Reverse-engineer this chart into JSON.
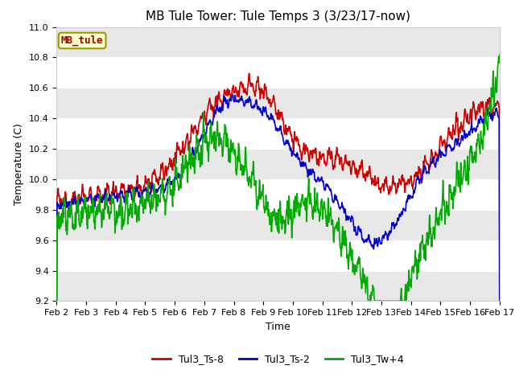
{
  "title": "MB Tule Tower: Tule Temps 3 (3/23/17-now)",
  "xlabel": "Time",
  "ylabel": "Temperature (C)",
  "ylim": [
    9.2,
    11.0
  ],
  "xlim": [
    0,
    15
  ],
  "xtick_labels": [
    "Feb 2",
    "Feb 3",
    "Feb 4",
    "Feb 5",
    "Feb 6",
    "Feb 7",
    "Feb 8",
    "Feb 9",
    "Feb 10",
    "Feb 11",
    "Feb 12",
    "Feb 13",
    "Feb 14",
    "Feb 15",
    "Feb 16",
    "Feb 17"
  ],
  "color_red": "#cc0000",
  "color_blue": "#0000cc",
  "color_green": "#00aa00",
  "legend_entries": [
    "Tul3_Ts-8",
    "Tul3_Ts-2",
    "Tul3_Tw+4"
  ],
  "watermark_text": "MB_tule",
  "watermark_bg": "#ffffcc",
  "watermark_border": "#999900",
  "fig_bg": "#ffffff",
  "plot_bg": "#ffffff",
  "grid_color": "#dddddd",
  "title_fontsize": 11,
  "axis_fontsize": 9,
  "tick_fontsize": 8,
  "legend_fontsize": 9,
  "linewidth": 1.2
}
